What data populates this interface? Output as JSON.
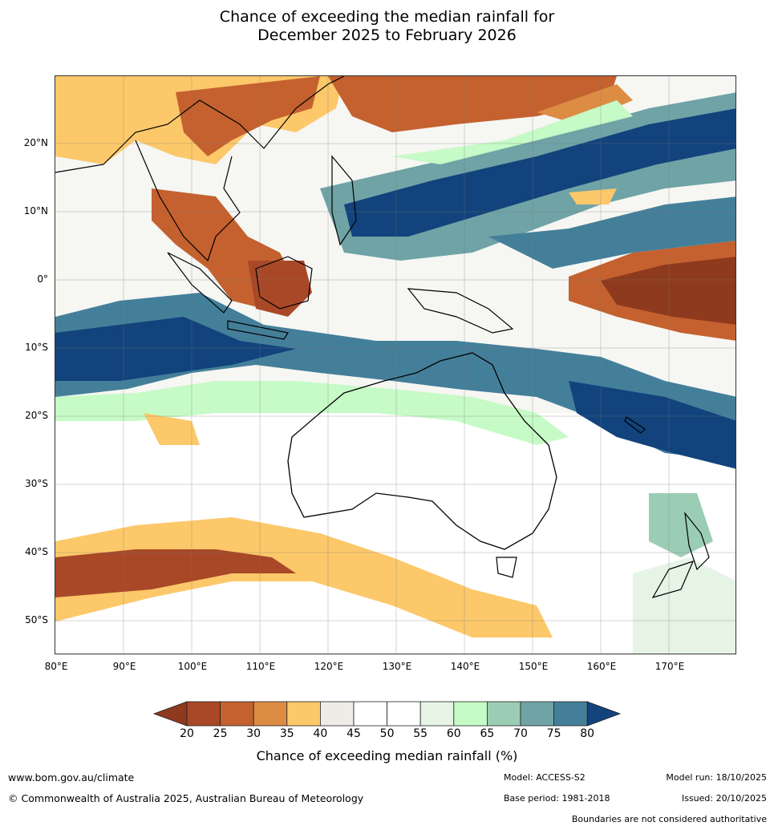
{
  "title_line1": "Chance of exceeding the median rainfall for",
  "title_line2": "December 2025 to February 2026",
  "map": {
    "name": "Chance of exceeding median rainfall map, Australia and surrounding region",
    "lat_labels": [
      "20°N",
      "10°N",
      "0°",
      "10°S",
      "20°S",
      "30°S",
      "40°S",
      "50°S"
    ],
    "lon_labels": [
      "80°E",
      "90°E",
      "100°E",
      "110°E",
      "120°E",
      "130°E",
      "140°E",
      "150°E",
      "160°E",
      "170°E"
    ]
  },
  "colorbar": {
    "title": "Chance of exceeding median rainfall (%)",
    "tick_labels": [
      "20",
      "25",
      "30",
      "35",
      "40",
      "45",
      "50",
      "55",
      "60",
      "65",
      "70",
      "75",
      "80"
    ],
    "colors": [
      "#8e3a1e",
      "#a94827",
      "#c4612f",
      "#dd8c44",
      "#fcc86a",
      "#efece8",
      "#ffffff",
      "#ffffff",
      "#e6f4e6",
      "#c6fac6",
      "#9bcdb5",
      "#6fa3a6",
      "#447f9a",
      "#12437c"
    ]
  },
  "footer": {
    "website": "www.bom.gov.au/climate",
    "copyright": "© Commonwealth of Australia 2025, Australian Bureau of Meteorology",
    "model": "Model: ACCESS-S2",
    "model_run": "Model run: 18/10/2025",
    "base_period": "Base period: 1981-2018",
    "issued": "Issued: 20/10/2025",
    "disclaimer": "Boundaries are not considered authoritative"
  }
}
